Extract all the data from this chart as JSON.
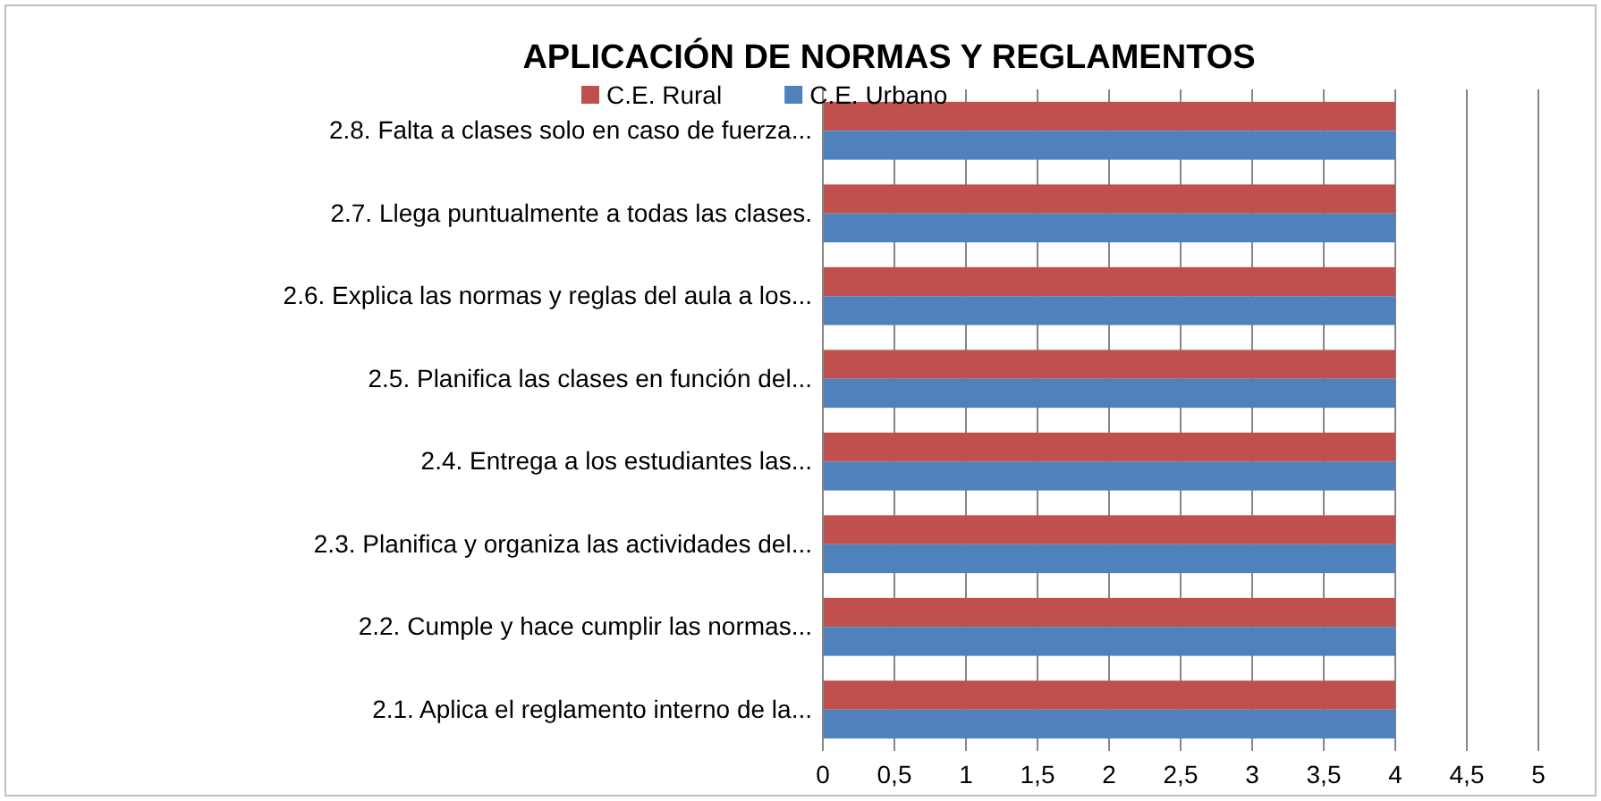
{
  "chart_data": {
    "type": "bar",
    "orientation": "horizontal",
    "title": "APLICACIÓN DE NORMAS Y REGLAMENTOS",
    "categories": [
      "2.8.  Falta a  clases solo en caso de fuerza...",
      "2.7.  Llega puntualmente a todas las clases.",
      "2.6.  Explica las normas y reglas del aula a los...",
      "2.5.  Planifica las clases en función del...",
      "2.4.  Entrega a los estudiantes las...",
      "2.3.  Planifica y organiza las actividades del...",
      "2.2.  Cumple y hace cumplir  las normas...",
      "2.1.  Aplica el reglamento interno de la..."
    ],
    "series": [
      {
        "name": "C.E. Rural",
        "color": "#c0504d",
        "values": [
          4,
          4,
          4,
          4,
          4,
          4,
          4,
          4
        ]
      },
      {
        "name": "C.E. Urbano",
        "color": "#4f81bd",
        "values": [
          4,
          4,
          4,
          4,
          4,
          4,
          4,
          4
        ]
      }
    ],
    "xlim": [
      0,
      5
    ],
    "xticks": [
      0,
      {
        "value": 0.5,
        "label": "0,5"
      },
      1,
      {
        "value": 1.5,
        "label": "1,5"
      },
      2,
      {
        "value": 2.5,
        "label": "2,5"
      },
      3,
      {
        "value": 3.5,
        "label": "3,5"
      },
      4,
      {
        "value": 4.5,
        "label": "4,5"
      },
      5
    ],
    "grid": "x",
    "legend": "top"
  }
}
